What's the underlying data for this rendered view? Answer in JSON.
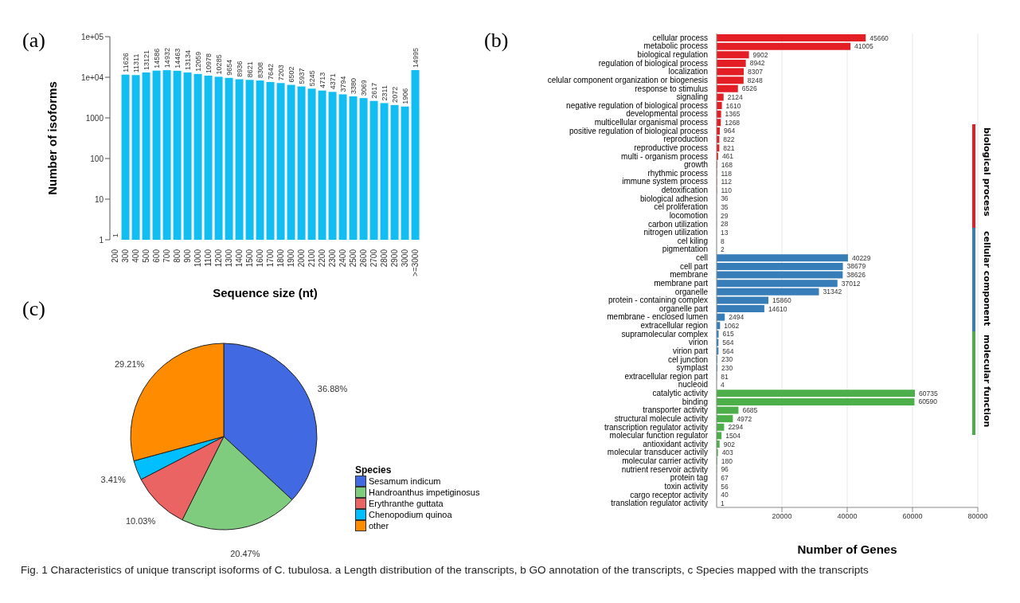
{
  "chart_data": [
    {
      "type": "bar",
      "title": "(a)",
      "xlabel": "Sequence size (nt)",
      "ylabel": "Number of isoforms",
      "categories": [
        "200",
        "300",
        "400",
        "500",
        "600",
        "700",
        "800",
        "900",
        "1000",
        "1100",
        "1200",
        "1300",
        "1400",
        "1500",
        "1600",
        "1700",
        "1800",
        "1900",
        "2000",
        "2100",
        "2200",
        "2300",
        "2400",
        "2500",
        "2600",
        "2700",
        "2800",
        "2900",
        "3000",
        ">=3000"
      ],
      "values": [
        1,
        11626,
        11311,
        13121,
        14586,
        14932,
        14463,
        13134,
        12059,
        10978,
        10285,
        9654,
        8936,
        8621,
        8308,
        7642,
        7203,
        6502,
        5937,
        5245,
        4713,
        4371,
        3794,
        3380,
        3069,
        2617,
        2311,
        2072,
        1906,
        14995
      ],
      "color": "#12bdf2",
      "log": true,
      "ylim": [
        1,
        100000
      ],
      "yticks": [
        1,
        10,
        100,
        1000,
        {
          "value": 10000,
          "label": "1e+04"
        },
        {
          "value": 100000,
          "label": "1e+05"
        }
      ],
      "data_labels": true
    },
    {
      "type": "bar",
      "title": "(b)",
      "xlabel": "Number of Genes",
      "orientation": "horizontal",
      "categories": [
        "cellular process",
        "metabolic process",
        "biological regulation",
        "regulation of biological process",
        "localization",
        "celular component organization or biogenesis",
        "response to stimulus",
        "signaling",
        "negative regulation of biological process",
        "developmental process",
        "multicellular organismal process",
        "positive regulation of biological process",
        "reproduction",
        "reproductive process",
        "multi - organism process",
        "growth",
        "rhythmic process",
        "immune system process",
        "detoxification",
        "biological adhesion",
        "cel proliferation",
        "locomotion",
        "carbon utilization",
        "nitrogen utilization",
        "cel kiling",
        "pigmentation",
        "cell",
        "cell part",
        "membrane",
        "membrane part",
        "organelle",
        "protein - containing complex",
        "organelle part",
        "membrane - enclosed lumen",
        "extracellular region",
        "supramolecular complex",
        "virion",
        "virion part",
        "cel junction",
        "symplast",
        "extracellular region part",
        "nucleoid",
        "catalytic activity",
        "binding",
        "transporter activity",
        "structural molecule activity",
        "transcription regulator activity",
        "molecular function regulator",
        "antioxidant activity",
        "molecular transducer activily",
        "molecular carrier activity",
        "nutrient reservoir activity",
        "protein tag",
        "toxin activity",
        "cargo receptor activity",
        "translation regulator activity"
      ],
      "series": [
        {
          "name": "biological process",
          "color": "#e31e24",
          "values": [
            45660,
            41005,
            9902,
            8942,
            8307,
            8248,
            6526,
            2124,
            1610,
            1365,
            1268,
            964,
            822,
            821,
            461,
            168,
            118,
            112,
            110,
            36,
            35,
            29,
            28,
            13,
            8,
            2,
            null,
            null,
            null,
            null,
            null,
            null,
            null,
            null,
            null,
            null,
            null,
            null,
            null,
            null,
            null,
            null,
            null,
            null,
            null,
            null,
            null,
            null,
            null,
            null,
            null,
            null,
            null,
            null,
            null,
            null
          ]
        },
        {
          "name": "cellular component",
          "color": "#377eb8",
          "values": [
            null,
            null,
            null,
            null,
            null,
            null,
            null,
            null,
            null,
            null,
            null,
            null,
            null,
            null,
            null,
            null,
            null,
            null,
            null,
            null,
            null,
            null,
            null,
            null,
            null,
            null,
            40229,
            38679,
            38626,
            37012,
            31342,
            15860,
            14610,
            2494,
            1062,
            615,
            564,
            564,
            230,
            230,
            81,
            4,
            null,
            null,
            null,
            null,
            null,
            null,
            null,
            null,
            null,
            null,
            null,
            null,
            null,
            null
          ]
        },
        {
          "name": "molecular function",
          "color": "#4daf4a",
          "values": [
            null,
            null,
            null,
            null,
            null,
            null,
            null,
            null,
            null,
            null,
            null,
            null,
            null,
            null,
            null,
            null,
            null,
            null,
            null,
            null,
            null,
            null,
            null,
            null,
            null,
            null,
            null,
            null,
            null,
            null,
            null,
            null,
            null,
            null,
            null,
            null,
            null,
            null,
            null,
            null,
            null,
            null,
            60735,
            60590,
            6685,
            4972,
            2294,
            1504,
            902,
            403,
            180,
            96,
            67,
            56,
            40,
            1
          ]
        }
      ],
      "xlim": [
        0,
        80000
      ],
      "xticks": [
        20000,
        40000,
        60000,
        80000
      ],
      "grid": "x",
      "legend": "right",
      "data_labels": true
    },
    {
      "type": "pie",
      "title": "(c)",
      "legend_title": "Species",
      "legend": "right",
      "categories": [
        "Sesamum indicum",
        "Handroanthus impetiginosus",
        "Erythranthe guttata",
        "Chenopodium quinoa",
        "other"
      ],
      "values": [
        36.88,
        20.47,
        10.03,
        3.41,
        29.21
      ],
      "value_labels": [
        "36.88%",
        "20.47%",
        "10.03%",
        "3.41%",
        "29.21%"
      ],
      "colors": [
        "#4169e1",
        "#7fcc7f",
        "#eb6464",
        "#00bfff",
        "#ff8c00"
      ],
      "annotations": [
        "Fig. 1  Characteristics of unique transcript isoforms of C. tubulosa. a Length distribution of the transcripts, b GO annotation of the transcripts, c Species mapped with the transcripts"
      ]
    }
  ]
}
